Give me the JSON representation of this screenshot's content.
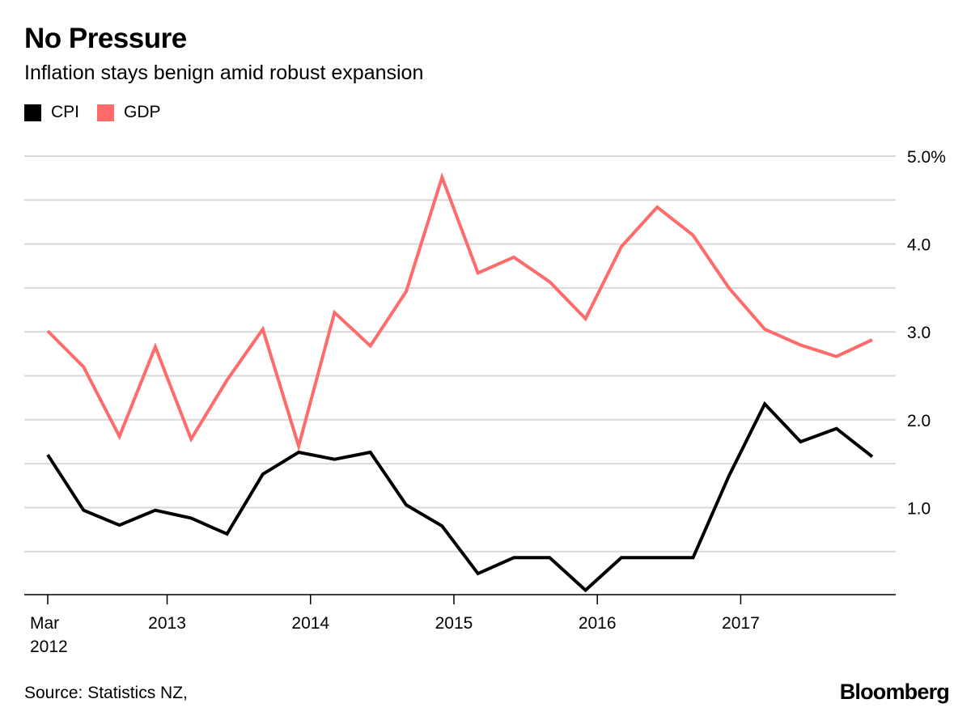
{
  "header": {
    "title": "No Pressure",
    "subtitle": "Inflation stays benign amid robust expansion"
  },
  "footer": {
    "source": "Source: Statistics NZ,",
    "brand": "Bloomberg"
  },
  "colors": {
    "cpi": "#000000",
    "gdp": "#ff6a6a",
    "grid": "#d9d9d9",
    "axis": "#000000"
  },
  "chart_data": {
    "type": "line",
    "x": [
      "2012-03",
      "2012-06",
      "2012-09",
      "2012-12",
      "2013-03",
      "2013-06",
      "2013-09",
      "2013-12",
      "2014-03",
      "2014-06",
      "2014-09",
      "2014-12",
      "2015-03",
      "2015-06",
      "2015-09",
      "2015-12",
      "2016-03",
      "2016-06",
      "2016-09",
      "2016-12",
      "2017-03",
      "2017-06",
      "2017-09",
      "2017-12"
    ],
    "series": [
      {
        "name": "CPI",
        "color": "#000000",
        "values": [
          1.6,
          0.97,
          0.8,
          0.97,
          0.88,
          0.7,
          1.38,
          1.63,
          1.55,
          1.63,
          1.03,
          0.79,
          0.25,
          0.43,
          0.43,
          0.06,
          0.43,
          0.43,
          0.43,
          1.36,
          2.18,
          1.75,
          1.9,
          1.58
        ]
      },
      {
        "name": "GDP",
        "color": "#ff6a6a",
        "values": [
          3.01,
          2.6,
          1.81,
          2.83,
          1.78,
          2.45,
          3.03,
          1.7,
          3.22,
          2.84,
          3.46,
          4.76,
          3.67,
          3.85,
          3.57,
          3.15,
          3.97,
          4.42,
          4.1,
          3.5,
          3.03,
          2.85,
          2.72,
          2.91
        ]
      }
    ],
    "ylim": [
      -0.5,
      5.0
    ],
    "yticks": [
      {
        "value": 5.0,
        "label": "5.0%"
      },
      {
        "value": 4.0,
        "label": "4.0"
      },
      {
        "value": 3.0,
        "label": "3.0"
      },
      {
        "value": 2.0,
        "label": "2.0"
      },
      {
        "value": 1.0,
        "label": "1.0"
      }
    ],
    "ygrid": [
      5.0,
      4.5,
      4.0,
      3.5,
      3.0,
      2.5,
      2.0,
      1.5,
      1.0,
      0.5
    ],
    "xticks": [
      {
        "index": 0,
        "label": "Mar",
        "label2": "2012"
      },
      {
        "index": 3.33,
        "label": "2013"
      },
      {
        "index": 7.33,
        "label": "2014"
      },
      {
        "index": 11.33,
        "label": "2015"
      },
      {
        "index": 15.33,
        "label": "2016"
      },
      {
        "index": 19.33,
        "label": "2017"
      }
    ],
    "grid": true,
    "legend": "top-left"
  }
}
